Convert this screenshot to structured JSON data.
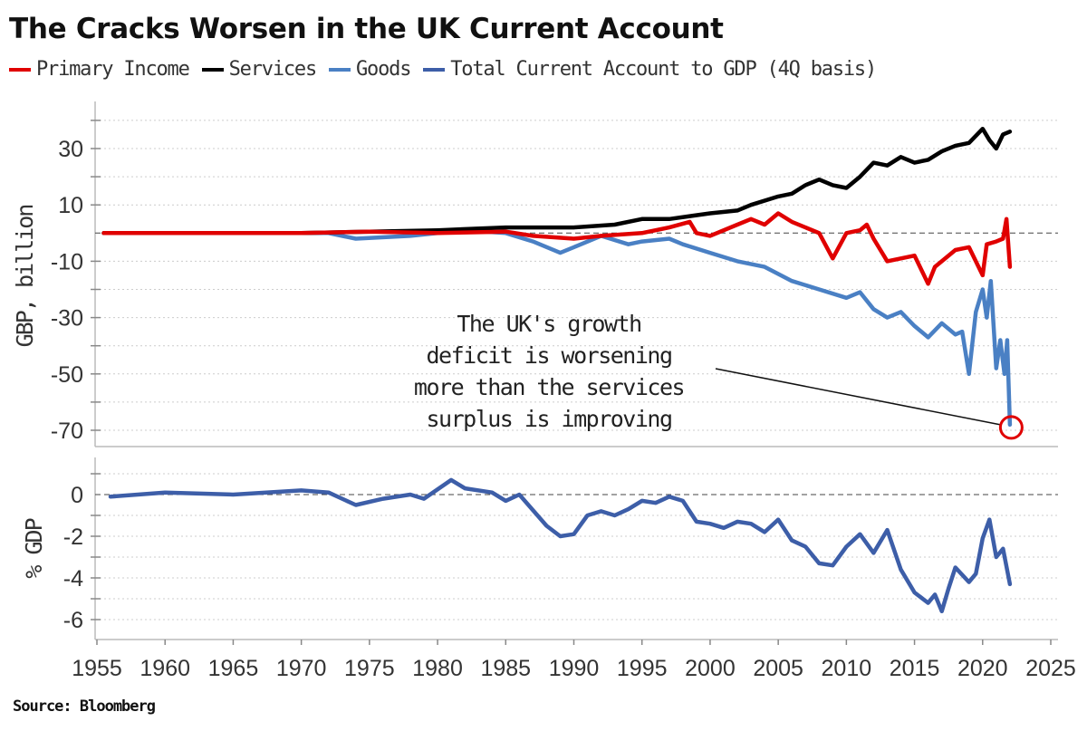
{
  "title": "The Cracks Worsen in the UK Current Account",
  "source": "Source: Bloomberg",
  "legend": [
    {
      "name": "Primary Income",
      "color": "#e00000"
    },
    {
      "name": "Services",
      "color": "#000000"
    },
    {
      "name": "Goods",
      "color": "#4a80c4"
    },
    {
      "name": "Total Current Account to GDP (4Q basis)",
      "color": "#3d5ea8"
    }
  ],
  "chart_data": [
    {
      "type": "line",
      "title": "The Cracks Worsen in the UK Current Account",
      "ylabel": "GBP, billion",
      "ylim": [
        -76,
        47
      ],
      "yticks": [
        30,
        10,
        -10,
        -30,
        -50,
        -70
      ],
      "xlim": [
        1955,
        2025
      ],
      "grid": true,
      "reference_line": 0,
      "legend_placement": "top-left",
      "annotation": {
        "lines": [
          "The UK's growth",
          "deficit is worsening",
          "more than the services",
          "surplus is improving"
        ],
        "target": {
          "x": 2022.1,
          "y": -69
        }
      },
      "series": [
        {
          "name": "Primary Income",
          "color": "#e00000",
          "x": [
            1955.5,
            1970,
            1975,
            1980,
            1985,
            1987,
            1990,
            1992,
            1995,
            1997,
            1998.5,
            1999,
            2000,
            2002,
            2003,
            2004,
            2005,
            2006,
            2007,
            2008,
            2009,
            2010,
            2011,
            2011.5,
            2012,
            2013,
            2014,
            2015,
            2016,
            2016.5,
            2017,
            2018,
            2019,
            2020,
            2020.3,
            2021,
            2021.5,
            2021.75,
            2022
          ],
          "y": [
            0,
            0,
            0.5,
            0,
            0.5,
            -1,
            -2,
            -1,
            0,
            2,
            4,
            0,
            -1,
            3,
            5,
            3,
            7,
            4,
            2,
            0,
            -9,
            0,
            1,
            3,
            -2,
            -10,
            -9,
            -8,
            -18,
            -12,
            -10,
            -6,
            -5,
            -15,
            -4,
            -3,
            -2,
            5,
            -12
          ]
        },
        {
          "name": "Services",
          "color": "#000000",
          "x": [
            1955.5,
            1970,
            1975,
            1980,
            1985,
            1990,
            1993,
            1995,
            1997,
            2000,
            2002,
            2003,
            2005,
            2006,
            2007,
            2008,
            2009,
            2010,
            2011,
            2012,
            2013,
            2014,
            2015,
            2016,
            2017,
            2018,
            2019,
            2020,
            2020.5,
            2021,
            2021.5,
            2022
          ],
          "y": [
            0,
            0,
            0.5,
            1,
            2,
            2,
            3,
            5,
            5,
            7,
            8,
            10,
            13,
            14,
            17,
            19,
            17,
            16,
            20,
            25,
            24,
            27,
            25,
            26,
            29,
            31,
            32,
            37,
            33,
            30,
            35,
            36
          ]
        },
        {
          "name": "Goods",
          "color": "#4a80c4",
          "x": [
            1955.5,
            1972,
            1974,
            1978,
            1980,
            1982,
            1985,
            1987,
            1989,
            1990,
            1992,
            1994,
            1995,
            1997,
            1998,
            2000,
            2002,
            2004,
            2006,
            2008,
            2010,
            2011,
            2012,
            2013,
            2014,
            2015,
            2016,
            2017,
            2018,
            2018.5,
            2019,
            2019.5,
            2020,
            2020.3,
            2020.6,
            2021,
            2021.3,
            2021.6,
            2021.8,
            2022
          ],
          "y": [
            0,
            0,
            -2,
            -1,
            0,
            1,
            0,
            -3,
            -7,
            -5,
            -1,
            -4,
            -3,
            -2,
            -4,
            -7,
            -10,
            -12,
            -17,
            -20,
            -23,
            -21,
            -27,
            -30,
            -28,
            -33,
            -37,
            -32,
            -36,
            -35,
            -50,
            -28,
            -20,
            -30,
            -17,
            -48,
            -38,
            -50,
            -38,
            -68
          ]
        }
      ]
    },
    {
      "type": "line",
      "ylabel": "% GDP",
      "ylim": [
        -6.8,
        1.8
      ],
      "yticks": [
        0,
        -2,
        -4,
        -6
      ],
      "xlim": [
        1955,
        2025
      ],
      "xticks": [
        1955,
        1960,
        1965,
        1970,
        1975,
        1980,
        1985,
        1990,
        1995,
        2000,
        2005,
        2010,
        2015,
        2020,
        2025
      ],
      "grid": true,
      "reference_line": 0,
      "series": [
        {
          "name": "Total Current Account to GDP (4Q basis)",
          "color": "#3d5ea8",
          "x": [
            1956,
            1960,
            1965,
            1970,
            1972,
            1974,
            1976,
            1978,
            1979,
            1981,
            1982,
            1984,
            1985,
            1986,
            1988,
            1989,
            1990,
            1991,
            1992,
            1993,
            1994,
            1995,
            1996,
            1997,
            1998,
            1999,
            2000,
            2001,
            2002,
            2003,
            2004,
            2005,
            2006,
            2007,
            2008,
            2009,
            2010,
            2011,
            2012,
            2013,
            2014,
            2015,
            2016,
            2016.5,
            2017,
            2017.5,
            2018,
            2019,
            2019.5,
            2020,
            2020.5,
            2021,
            2021.5,
            2022
          ],
          "y": [
            -0.1,
            0.1,
            0,
            0.2,
            0.1,
            -0.5,
            -0.2,
            0,
            -0.2,
            0.7,
            0.3,
            0.1,
            -0.3,
            0,
            -1.5,
            -2,
            -1.9,
            -1,
            -0.8,
            -1,
            -0.7,
            -0.3,
            -0.4,
            -0.1,
            -0.3,
            -1.3,
            -1.4,
            -1.6,
            -1.3,
            -1.4,
            -1.8,
            -1.2,
            -2.2,
            -2.5,
            -3.3,
            -3.4,
            -2.5,
            -1.9,
            -2.8,
            -1.7,
            -3.6,
            -4.7,
            -5.2,
            -4.8,
            -5.6,
            -4.5,
            -3.5,
            -4.2,
            -3.8,
            -2.1,
            -1.2,
            -3,
            -2.6,
            -4.3
          ]
        }
      ]
    }
  ]
}
